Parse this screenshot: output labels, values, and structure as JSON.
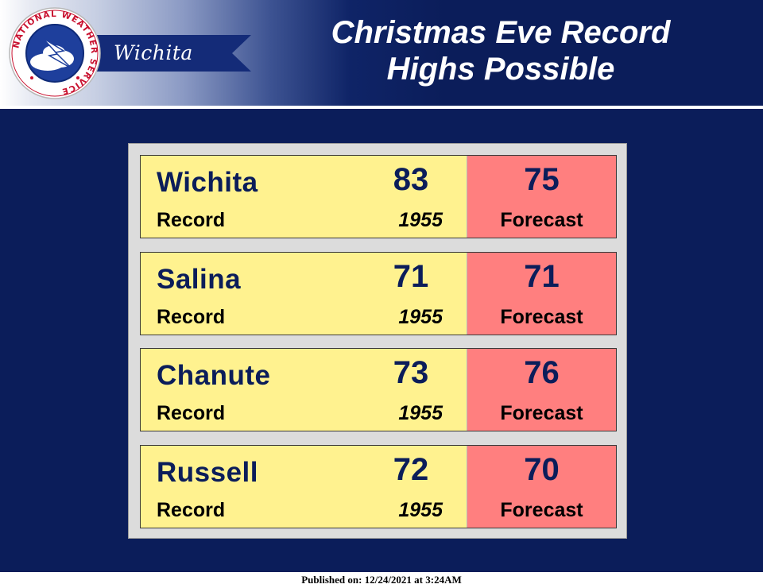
{
  "header": {
    "office": "Wichita",
    "title_line1": "Christmas Eve Record",
    "title_line2": "Highs Possible",
    "logo": {
      "icon": "nws-logo-icon",
      "ring_text": "NATIONAL WEATHER SERVICE"
    }
  },
  "colors": {
    "background": "#0b1d5a",
    "record_cell": "#fff28f",
    "forecast_cell": "#ff7f7f",
    "value_text": "#0b1d5a"
  },
  "rows": [
    {
      "city": "Wichita",
      "record": "83",
      "record_label": "Record",
      "record_year": "1955",
      "forecast": "75",
      "forecast_label": "Forecast"
    },
    {
      "city": "Salina",
      "record": "71",
      "record_label": "Record",
      "record_year": "1955",
      "forecast": "71",
      "forecast_label": "Forecast"
    },
    {
      "city": "Chanute",
      "record": "73",
      "record_label": "Record",
      "record_year": "1955",
      "forecast": "76",
      "forecast_label": "Forecast"
    },
    {
      "city": "Russell",
      "record": "72",
      "record_label": "Record",
      "record_year": "1955",
      "forecast": "70",
      "forecast_label": "Forecast"
    }
  ],
  "footer": {
    "published": "Published on: 12/24/2021 at 3:24AM"
  }
}
